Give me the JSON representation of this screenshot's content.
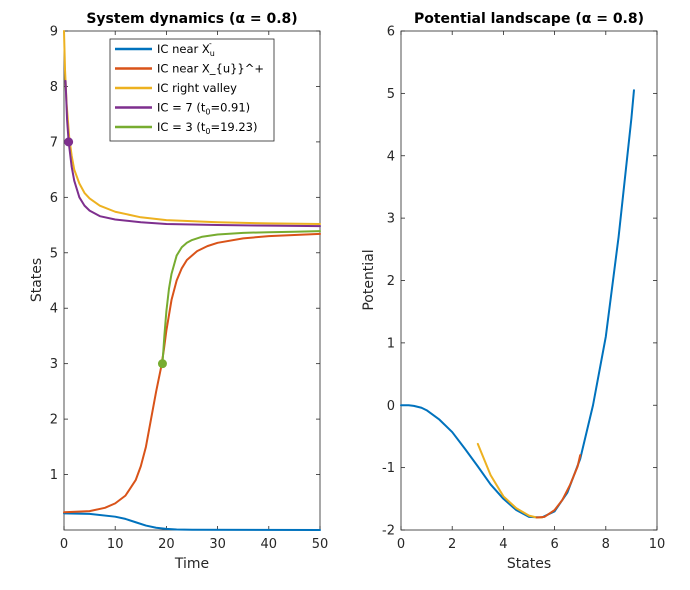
{
  "chart_data": [
    {
      "type": "line",
      "title": "System dynamics (α = 0.8)",
      "xlabel": "Time",
      "ylabel": "States",
      "xlim": [
        0,
        50
      ],
      "ylim": [
        0,
        9
      ],
      "xticks": [
        "0",
        "10",
        "20",
        "30",
        "40",
        "50"
      ],
      "yticks": [
        "1",
        "2",
        "3",
        "4",
        "5",
        "6",
        "7",
        "8",
        "9"
      ],
      "grid": false,
      "legend_position": "top-center",
      "legend": [
        {
          "label": "IC near X",
          "sub": "u",
          "sup": "-",
          "color": "#0072BD"
        },
        {
          "label": "IC near X_{u}}^+",
          "color": "#D95319"
        },
        {
          "label": "IC right valley",
          "color": "#EDB120"
        },
        {
          "label": "IC = 7 (t",
          "sub": "0",
          "suffix": "=0.91)",
          "color": "#7E2F8E"
        },
        {
          "label": "IC = 3 (t",
          "sub": "0",
          "suffix": "=19.23)",
          "color": "#77AC30"
        }
      ],
      "series": [
        {
          "name": "IC near X_u^-",
          "color": "#0072BD",
          "x": [
            0,
            5,
            10,
            12,
            14,
            16,
            18,
            20,
            22,
            25,
            50
          ],
          "y": [
            0.3,
            0.29,
            0.24,
            0.2,
            0.14,
            0.08,
            0.04,
            0.02,
            0.01,
            0.005,
            0.0
          ]
        },
        {
          "name": "IC near X_{u}}^+",
          "color": "#D95319",
          "x": [
            0,
            5,
            8,
            10,
            12,
            14,
            15,
            16,
            17,
            18,
            19,
            19.5,
            20,
            21,
            22,
            23,
            24,
            26,
            28,
            30,
            35,
            40,
            45,
            50
          ],
          "y": [
            0.32,
            0.34,
            0.4,
            0.48,
            0.62,
            0.9,
            1.15,
            1.5,
            2.0,
            2.5,
            2.95,
            3.25,
            3.6,
            4.15,
            4.5,
            4.72,
            4.87,
            5.03,
            5.12,
            5.18,
            5.26,
            5.3,
            5.32,
            5.34
          ]
        },
        {
          "name": "IC right valley",
          "color": "#EDB120",
          "x": [
            0,
            0.2,
            0.5,
            1,
            1.5,
            2,
            3,
            4,
            5,
            7,
            10,
            15,
            20,
            30,
            40,
            50
          ],
          "y": [
            9.0,
            8.3,
            7.7,
            7.1,
            6.75,
            6.5,
            6.25,
            6.08,
            5.98,
            5.85,
            5.74,
            5.64,
            5.59,
            5.55,
            5.53,
            5.52
          ]
        },
        {
          "name": "IC = 7 (t0=0.91)",
          "color": "#7E2F8E",
          "x": [
            0.3,
            0.6,
            0.91,
            1.5,
            2,
            3,
            4,
            5,
            7,
            10,
            15,
            20,
            30,
            40,
            50
          ],
          "y": [
            8.1,
            7.4,
            7.0,
            6.55,
            6.3,
            6.0,
            5.85,
            5.76,
            5.66,
            5.6,
            5.55,
            5.52,
            5.5,
            5.49,
            5.48
          ]
        },
        {
          "name": "IC = 3 (t0=19.23)",
          "color": "#77AC30",
          "x": [
            19.23,
            19.6,
            20,
            20.5,
            21,
            22,
            23,
            24,
            25,
            27,
            30,
            35,
            40,
            45,
            50
          ],
          "y": [
            3.0,
            3.5,
            3.95,
            4.35,
            4.62,
            4.95,
            5.1,
            5.18,
            5.23,
            5.29,
            5.33,
            5.36,
            5.37,
            5.38,
            5.39
          ]
        }
      ],
      "markers": [
        {
          "x": 0.91,
          "y": 7.0,
          "color": "#7E2F8E"
        },
        {
          "x": 19.23,
          "y": 3.0,
          "color": "#77AC30"
        }
      ]
    },
    {
      "type": "line",
      "title": "Potential landscape (α = 0.8)",
      "xlabel": "States",
      "ylabel": "Potential",
      "xlim": [
        0,
        10
      ],
      "ylim": [
        -2,
        6
      ],
      "xticks": [
        "0",
        "2",
        "4",
        "6",
        "8",
        "10"
      ],
      "yticks": [
        "-2",
        "-1",
        "0",
        "1",
        "2",
        "3",
        "4",
        "5",
        "6"
      ],
      "grid": false,
      "series": [
        {
          "name": "potential",
          "color": "#0072BD",
          "x": [
            0,
            0.3,
            0.5,
            0.8,
            1,
            1.5,
            2,
            2.5,
            3,
            3.5,
            4,
            4.5,
            5,
            5.5,
            6,
            6.5,
            7,
            7.5,
            8,
            8.5,
            9,
            9.1
          ],
          "y": [
            0,
            0,
            -0.01,
            -0.04,
            -0.08,
            -0.23,
            -0.43,
            -0.7,
            -0.98,
            -1.27,
            -1.5,
            -1.68,
            -1.79,
            -1.8,
            -1.7,
            -1.4,
            -0.86,
            0.0,
            1.1,
            2.7,
            4.6,
            5.05
          ]
        },
        {
          "name": "potential (IC=3 path)",
          "color": "#EDB120",
          "x": [
            3.0,
            3.5,
            4.0,
            4.5,
            5.0,
            5.3,
            5.5
          ],
          "y": [
            -0.62,
            -1.12,
            -1.46,
            -1.65,
            -1.77,
            -1.8,
            -1.8
          ]
        },
        {
          "name": "potential (IC=7 path)",
          "color": "#D95319",
          "x": [
            5.3,
            5.6,
            6.0,
            6.3,
            6.6,
            6.9,
            7.0
          ],
          "y": [
            -1.8,
            -1.79,
            -1.68,
            -1.52,
            -1.28,
            -0.98,
            -0.8
          ]
        }
      ]
    }
  ]
}
